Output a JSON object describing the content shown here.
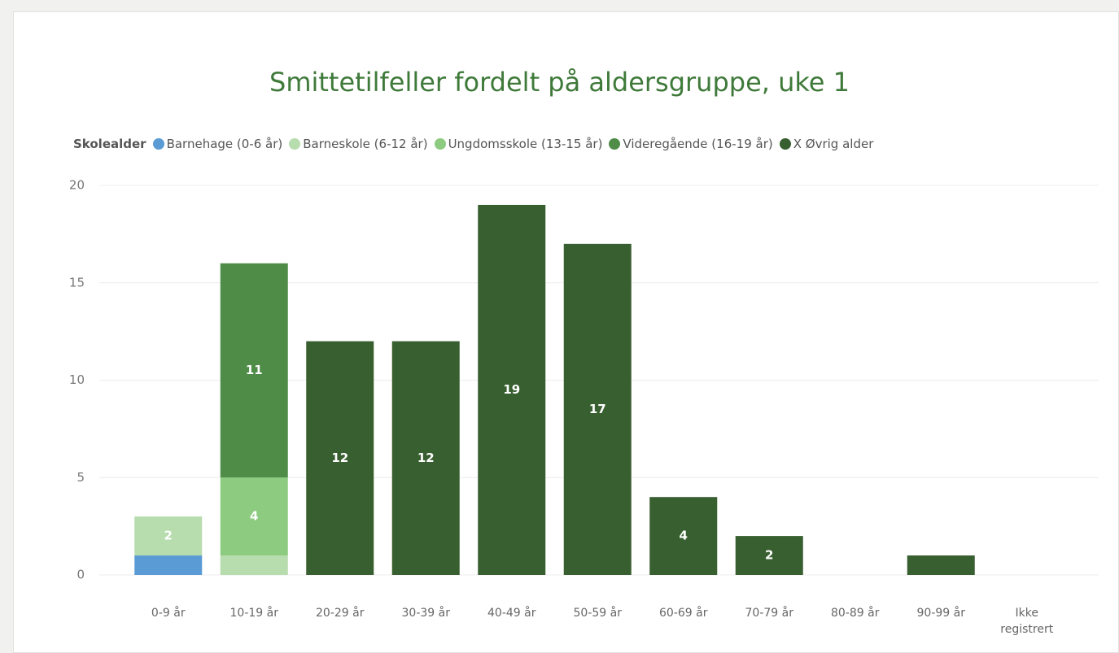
{
  "chart_data": {
    "type": "stacked_bar",
    "title": "Smittetilfeller fordelt på aldersgruppe, uke 1",
    "legend_title": "Skolealder",
    "categories": [
      "0-9 år",
      "10-19 år",
      "20-29 år",
      "30-39 år",
      "40-49 år",
      "50-59 år",
      "60-69 år",
      "70-79 år",
      "80-89 år",
      "90-99 år",
      "Ikke registrert"
    ],
    "series": [
      {
        "name": "Barnehage (0-6 år)",
        "color": "#5b9bd5",
        "values": [
          1,
          null,
          null,
          null,
          null,
          null,
          null,
          null,
          null,
          null,
          null
        ],
        "value_labels": [
          null,
          null,
          null,
          null,
          null,
          null,
          null,
          null,
          null,
          null,
          null
        ]
      },
      {
        "name": "Barneskole (6-12 år)",
        "color": "#b7dcae",
        "values": [
          2,
          1,
          null,
          null,
          null,
          null,
          null,
          null,
          null,
          null,
          null
        ],
        "value_labels": [
          "2",
          null,
          null,
          null,
          null,
          null,
          null,
          null,
          null,
          null,
          null
        ]
      },
      {
        "name": "Ungdomsskole (13-15 år)",
        "color": "#8ccb80",
        "values": [
          null,
          4,
          null,
          null,
          null,
          null,
          null,
          null,
          null,
          null,
          null
        ],
        "value_labels": [
          null,
          "4",
          null,
          null,
          null,
          null,
          null,
          null,
          null,
          null,
          null
        ]
      },
      {
        "name": "Videregående (16-19 år)",
        "color": "#4f8c47",
        "values": [
          null,
          11,
          null,
          null,
          null,
          null,
          null,
          null,
          null,
          null,
          null
        ],
        "value_labels": [
          null,
          "11",
          null,
          null,
          null,
          null,
          null,
          null,
          null,
          null,
          null
        ]
      },
      {
        "name": "X Øvrig alder",
        "color": "#385f2f",
        "values": [
          null,
          null,
          12,
          12,
          19,
          17,
          4,
          2,
          null,
          1,
          null
        ],
        "value_labels": [
          null,
          null,
          "12",
          "12",
          "19",
          "17",
          "4",
          "2",
          null,
          null,
          null
        ]
      }
    ],
    "ylim": [
      0,
      20
    ],
    "yticks": [
      0,
      5,
      10,
      15,
      20
    ],
    "grid": true
  }
}
